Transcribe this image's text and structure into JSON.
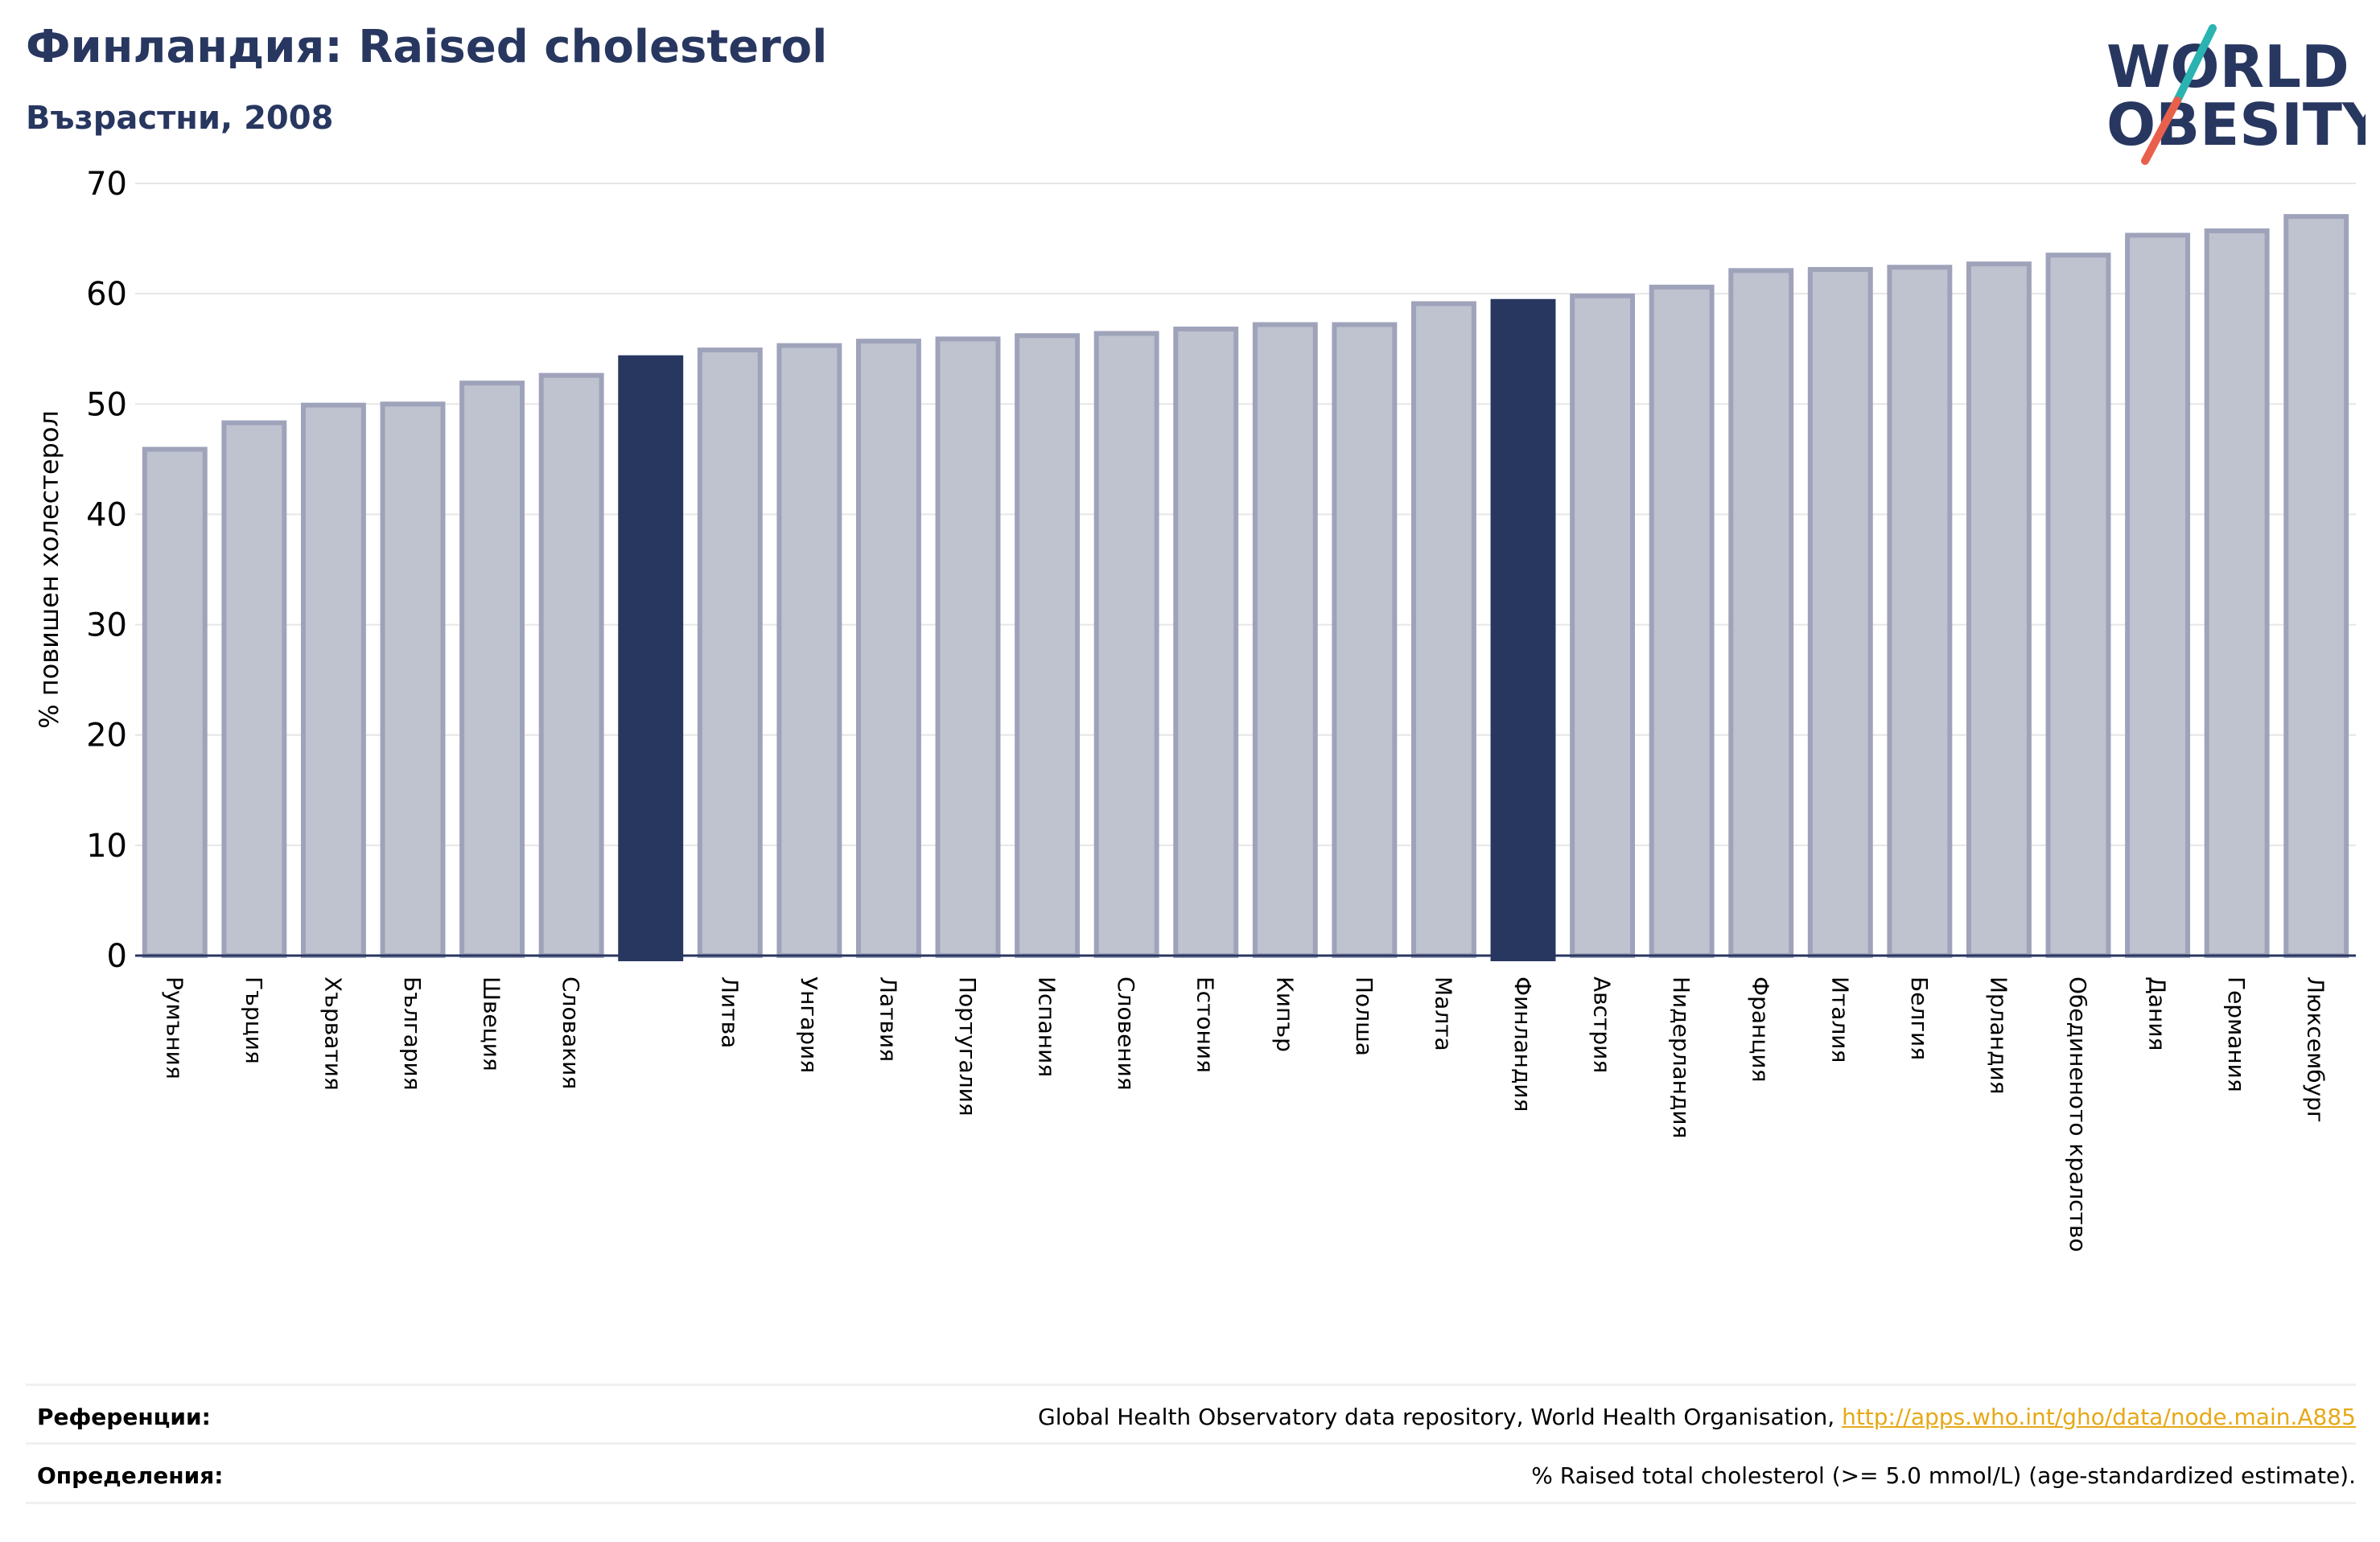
{
  "header": {
    "title": "Финландия: Raised cholesterol",
    "subtitle": "Възрастни, 2008"
  },
  "logo": {
    "line1": "WORLD",
    "line2": "OBESITY",
    "colors": {
      "text": "#283760",
      "slash_top": "#2ab3b1",
      "slash_bottom": "#e8604c"
    }
  },
  "colors": {
    "bar": "#bfc2cf",
    "bar_edge": "#9fa3ba",
    "highlight": "#283760",
    "grid": "#e6e6e6",
    "axis": "#283760",
    "link": "#e6a817"
  },
  "chart_data": {
    "type": "bar",
    "ylabel": "% повишен холестерол",
    "ylim": [
      0,
      70
    ],
    "yticks": [
      0,
      10,
      20,
      30,
      40,
      50,
      60,
      70
    ],
    "grid": true,
    "categories": [
      "Румъния",
      "Гърция",
      "Хърватия",
      "България",
      "Швеция",
      "Словакия",
      "",
      "Литва",
      "Унгария",
      "Латвия",
      "Португалия",
      "Испания",
      "Словения",
      "Естония",
      "Кипър",
      "Полша",
      "Малта",
      "Финландия",
      "Австрия",
      "Нидерландия",
      "Франция",
      "Италия",
      "Белгия",
      "Ирландия",
      "Обединеното кралство",
      "Дания",
      "Германия",
      "Люксембург"
    ],
    "values": [
      45.9,
      48.3,
      49.9,
      50.0,
      51.9,
      52.6,
      54.2,
      54.9,
      55.3,
      55.7,
      55.9,
      56.2,
      56.4,
      56.8,
      57.2,
      57.2,
      59.1,
      59.3,
      59.8,
      60.6,
      62.1,
      62.2,
      62.4,
      62.7,
      63.5,
      65.3,
      65.7,
      67.0
    ],
    "highlighted": [
      6,
      17
    ]
  },
  "footer": {
    "references_label": "Референции:",
    "references_text": "Global Health Observatory data repository, World Health Organisation, ",
    "references_link": "http://apps.who.int/gho/data/node.main.A885",
    "definitions_label": "Определения:",
    "definitions_text": "% Raised total cholesterol (>= 5.0 mmol/L) (age-standardized estimate)."
  }
}
